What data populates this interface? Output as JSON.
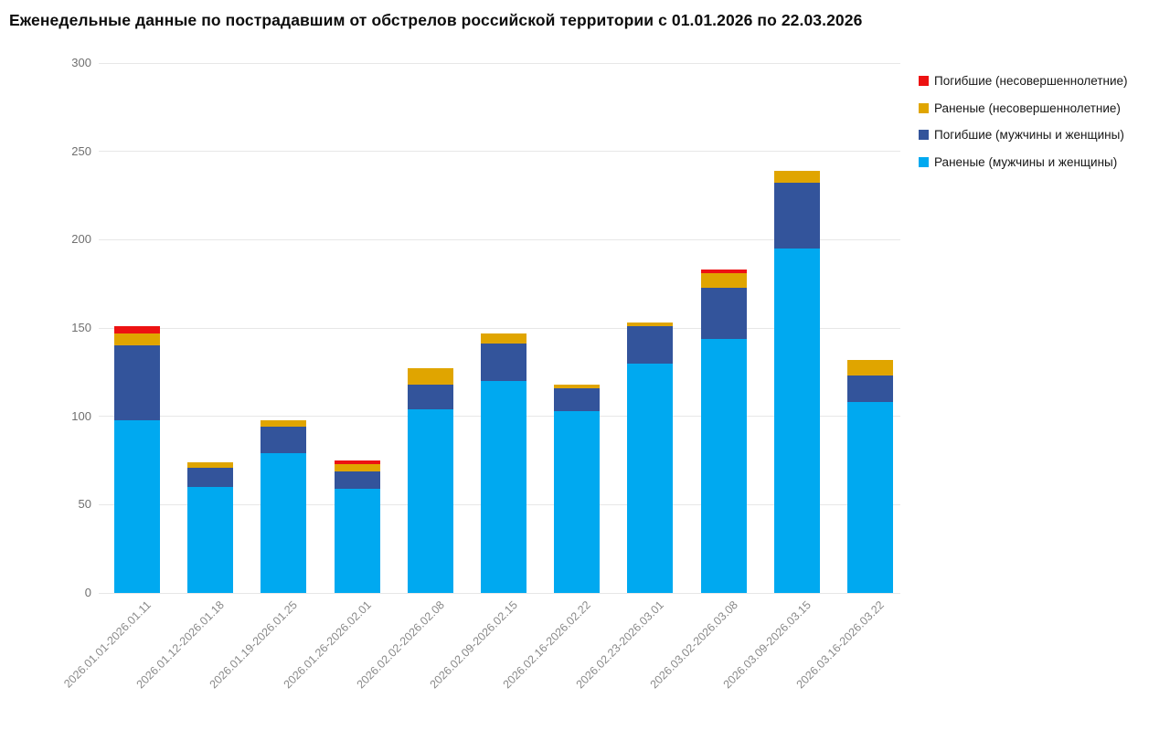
{
  "title": "Еженедельные данные по пострадавшим от обстрелов российской территории с 01.01.2026 по 22.03.2026",
  "colors": {
    "wounded_adults": "#00A9F0",
    "killed_adults": "#33549B",
    "wounded_minors": "#E0A500",
    "killed_minors": "#ED1212",
    "gridline": "#e7e7e7",
    "background": "#ffffff"
  },
  "chart_data": {
    "type": "bar",
    "stacked": true,
    "title": "Еженедельные данные по пострадавшим от обстрелов российской территории с 01.01.2026 по 22.03.2026",
    "xlabel": "",
    "ylabel": "",
    "ylim": [
      0,
      300
    ],
    "y_ticks": [
      0,
      50,
      100,
      150,
      200,
      250,
      300
    ],
    "grid": true,
    "legend_position": "top-right",
    "categories": [
      "2026.01.01-2026.01.11",
      "2026.01.12-2026.01.18",
      "2026.01.19-2026.01.25",
      "2026.01.26-2026.02.01",
      "2026.02.02-2026.02.08",
      "2026.02.09-2026.02.15",
      "2026.02.16-2026.02.22",
      "2026.02.23-2026.03.01",
      "2026.03.02-2026.03.08",
      "2026.03.09-2026.03.15",
      "2026.03.16-2026.03.22"
    ],
    "series": [
      {
        "name": "Раненые (мужчины и женщины)",
        "color": "#00A9F0",
        "values": [
          98,
          60,
          79,
          59,
          104,
          120,
          103,
          130,
          144,
          195,
          108
        ]
      },
      {
        "name": "Погибшие (мужчины и женщины)",
        "color": "#33549B",
        "values": [
          42,
          11,
          15,
          10,
          14,
          21,
          13,
          21,
          29,
          37,
          15
        ]
      },
      {
        "name": "Раненые (несовершеннолетние)",
        "color": "#E0A500",
        "values": [
          7,
          3,
          4,
          4,
          9,
          6,
          2,
          2,
          8,
          7,
          9
        ]
      },
      {
        "name": "Погибшие (несовершеннолетние)",
        "color": "#ED1212",
        "values": [
          4,
          0,
          0,
          2,
          0,
          0,
          0,
          0,
          2,
          0,
          0
        ]
      }
    ],
    "legend_order_top_to_bottom": [
      "Погибшие (несовершеннолетние)",
      "Раненые (несовершеннолетние)",
      "Погибшие (мужчины и женщины)",
      "Раненые (мужчины и женщины)"
    ]
  }
}
